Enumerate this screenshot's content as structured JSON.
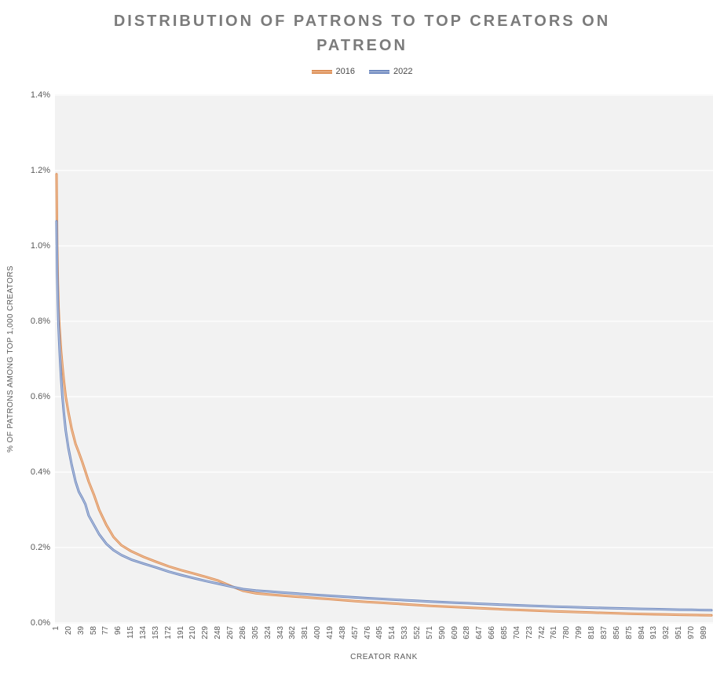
{
  "title": "DISTRIBUTION OF PATRONS TO TOP CREATORS ON PATREON",
  "colors": {
    "title": "#7b7b7b",
    "axis_text": "#595959",
    "plot_background": "#f2f2f2",
    "gridline": "#fafafa",
    "series_2016": "#dd8f57",
    "series_2016_core": "#f0c3a0",
    "series_2022": "#6e89c0",
    "series_2022_core": "#b9c5de"
  },
  "legend": {
    "items": [
      {
        "label": "2016",
        "color": "#dd8f57",
        "core": "#f0c3a0"
      },
      {
        "label": "2022",
        "color": "#6e89c0",
        "core": "#b9c5de"
      }
    ]
  },
  "chart_data": {
    "type": "line",
    "title": "DISTRIBUTION OF PATRONS TO TOP CREATORS ON PATREON",
    "xlabel": "CREATOR RANK",
    "ylabel": "% OF PATRONS AMONG TOP 1,000 CREATORS",
    "xlim": [
      1,
      1000
    ],
    "ylim": [
      0,
      1.4
    ],
    "grid": true,
    "legend_position": "top-center",
    "y_tick_labels": [
      "0.0%",
      "0.2%",
      "0.4%",
      "0.6%",
      "0.8%",
      "1.0%",
      "1.2%",
      "1.4%"
    ],
    "x_tick_labels": [
      1,
      20,
      39,
      58,
      77,
      96,
      115,
      134,
      153,
      172,
      191,
      210,
      229,
      248,
      267,
      286,
      305,
      324,
      343,
      362,
      381,
      400,
      419,
      438,
      457,
      476,
      495,
      514,
      533,
      552,
      571,
      590,
      609,
      628,
      647,
      666,
      685,
      704,
      723,
      742,
      761,
      780,
      799,
      818,
      837,
      856,
      875,
      894,
      913,
      932,
      951,
      970,
      989
    ],
    "x": [
      1,
      2,
      3,
      4,
      5,
      6,
      8,
      10,
      12,
      15,
      19,
      24,
      30,
      35,
      40,
      45,
      50,
      58,
      66,
      77,
      88,
      100,
      115,
      134,
      153,
      172,
      191,
      210,
      229,
      248,
      267,
      286,
      305,
      324,
      343,
      362,
      381,
      400,
      419,
      438,
      457,
      476,
      495,
      514,
      533,
      552,
      571,
      590,
      609,
      628,
      647,
      666,
      685,
      704,
      723,
      742,
      761,
      780,
      799,
      818,
      837,
      856,
      875,
      894,
      913,
      932,
      951,
      970,
      989,
      1000
    ],
    "series": [
      {
        "name": "2016",
        "color": "#dd8f57",
        "core_color": "#f0c3a0",
        "values": [
          1.19,
          1.0,
          0.9,
          0.84,
          0.8,
          0.77,
          0.72,
          0.68,
          0.645,
          0.6,
          0.56,
          0.515,
          0.475,
          0.452,
          0.428,
          0.402,
          0.375,
          0.34,
          0.3,
          0.26,
          0.228,
          0.206,
          0.19,
          0.175,
          0.162,
          0.15,
          0.14,
          0.131,
          0.122,
          0.112,
          0.098,
          0.085,
          0.0785,
          0.0755,
          0.073,
          0.0705,
          0.068,
          0.0655,
          0.063,
          0.0605,
          0.058,
          0.0555,
          0.0535,
          0.0515,
          0.0495,
          0.0475,
          0.0455,
          0.0438,
          0.0422,
          0.0406,
          0.039,
          0.0375,
          0.036,
          0.0346,
          0.0333,
          0.032,
          0.0308,
          0.0296,
          0.0285,
          0.0274,
          0.0264,
          0.0254,
          0.0245,
          0.0237,
          0.023,
          0.0223,
          0.0217,
          0.0211,
          0.0206,
          0.0203
        ]
      },
      {
        "name": "2022",
        "color": "#6e89c0",
        "core_color": "#b9c5de",
        "values": [
          1.065,
          0.93,
          0.85,
          0.79,
          0.75,
          0.71,
          0.65,
          0.6,
          0.56,
          0.51,
          0.465,
          0.42,
          0.375,
          0.348,
          0.332,
          0.315,
          0.285,
          0.26,
          0.235,
          0.21,
          0.193,
          0.18,
          0.168,
          0.157,
          0.147,
          0.136,
          0.127,
          0.119,
          0.111,
          0.104,
          0.0965,
          0.0895,
          0.086,
          0.0835,
          0.081,
          0.0785,
          0.0762,
          0.074,
          0.0718,
          0.0697,
          0.0677,
          0.0657,
          0.0638,
          0.062,
          0.0602,
          0.0585,
          0.0568,
          0.0552,
          0.0537,
          0.0522,
          0.0508,
          0.0494,
          0.0481,
          0.0468,
          0.0456,
          0.0445,
          0.0434,
          0.0424,
          0.0414,
          0.0405,
          0.0396,
          0.0388,
          0.038,
          0.0373,
          0.0366,
          0.0359,
          0.0353,
          0.0347,
          0.0341,
          0.0338
        ]
      }
    ]
  }
}
